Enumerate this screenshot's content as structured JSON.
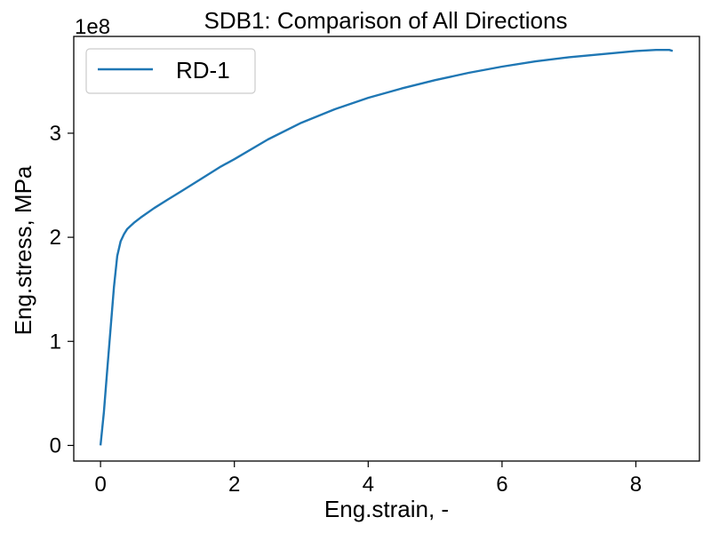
{
  "chart_data": {
    "type": "line",
    "title": "SDB1: Comparison of All Directions",
    "xlabel": "Eng.strain, -",
    "ylabel": "Eng.stress, MPa",
    "y_offset_text": "1e8",
    "xlim": [
      -0.4,
      8.95
    ],
    "ylim": [
      -0.15,
      3.93
    ],
    "xticks": [
      0,
      2,
      4,
      6,
      8
    ],
    "xtick_labels": [
      "0",
      "2",
      "4",
      "6",
      "8"
    ],
    "yticks": [
      0,
      1,
      2,
      3
    ],
    "ytick_labels": [
      "0",
      "1",
      "2",
      "3"
    ],
    "grid": false,
    "legend": {
      "position": "top-left"
    },
    "series": [
      {
        "name": "RD-1",
        "color": "#1f77b4",
        "x": [
          0.0,
          0.05,
          0.1,
          0.15,
          0.2,
          0.25,
          0.3,
          0.35,
          0.4,
          0.5,
          0.6,
          0.8,
          1.0,
          1.2,
          1.5,
          1.8,
          2.0,
          2.5,
          3.0,
          3.5,
          4.0,
          4.5,
          5.0,
          5.5,
          6.0,
          6.5,
          7.0,
          7.5,
          8.0,
          8.3,
          8.5,
          8.55
        ],
        "y": [
          0.0,
          0.32,
          0.72,
          1.12,
          1.52,
          1.82,
          1.96,
          2.03,
          2.08,
          2.14,
          2.19,
          2.28,
          2.36,
          2.44,
          2.56,
          2.68,
          2.75,
          2.94,
          3.1,
          3.23,
          3.34,
          3.43,
          3.51,
          3.58,
          3.64,
          3.69,
          3.73,
          3.76,
          3.79,
          3.8,
          3.8,
          3.79
        ]
      }
    ]
  }
}
